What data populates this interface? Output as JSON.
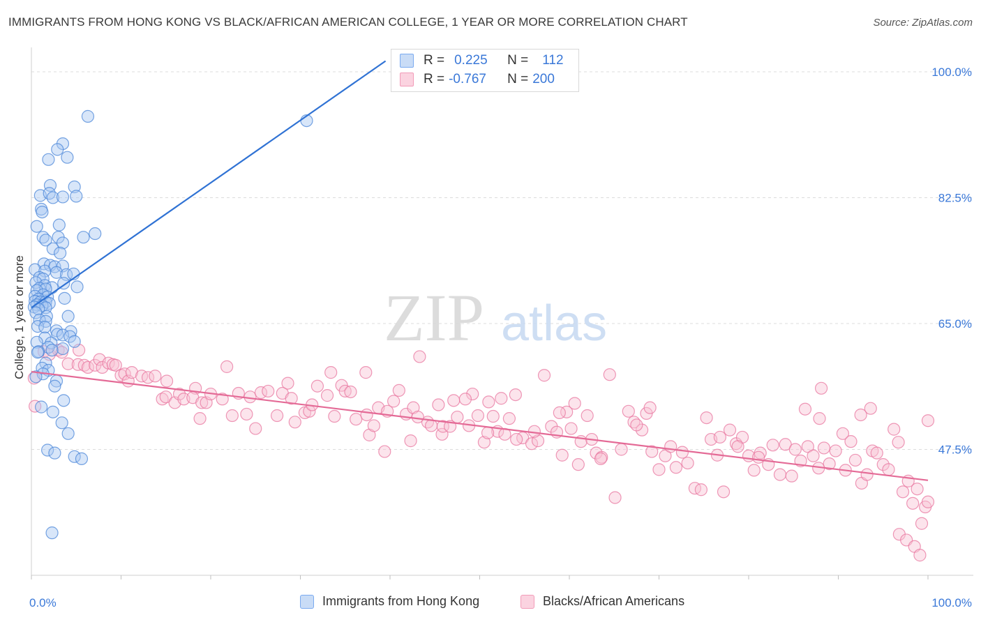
{
  "header": {
    "title": "IMMIGRANTS FROM HONG KONG VS BLACK/AFRICAN AMERICAN COLLEGE, 1 YEAR OR MORE CORRELATION CHART",
    "source": "Source: ZipAtlas.com"
  },
  "stats_legend": {
    "rows": [
      {
        "r_label": "R =",
        "r_value": "0.225",
        "n_label": "N =",
        "n_value": "112",
        "color": "#7aaaf0"
      },
      {
        "r_label": "R =",
        "r_value": "-0.767",
        "n_label": "N =",
        "n_value": "200",
        "color": "#f29bb8"
      }
    ]
  },
  "watermark": {
    "zip": "ZIP",
    "atlas": "atlas"
  },
  "colors": {
    "blue": "#4a86d8",
    "blue_fill": "#a9c8f2",
    "pink": "#e8769f",
    "pink_fill": "#f8c4d5",
    "tick_label": "#3a78d8"
  },
  "chart_data": {
    "type": "scatter",
    "title": "IMMIGRANTS FROM HONG KONG VS BLACK/AFRICAN AMERICAN COLLEGE, 1 YEAR OR MORE CORRELATION CHART",
    "xlabel": "",
    "ylabel": "College, 1 year or more",
    "xlim": [
      0,
      100
    ],
    "ylim": [
      30,
      103
    ],
    "x_tick_labels": [
      "0.0%",
      "100.0%"
    ],
    "y_ticks": [
      47.5,
      65.0,
      82.5,
      100.0
    ],
    "y_tick_labels": [
      "47.5%",
      "65.0%",
      "82.5%",
      "100.0%"
    ],
    "grid": true,
    "legend_position": "bottom",
    "series": [
      {
        "name": "Immigrants from Hong Kong",
        "r": 0.225,
        "n": 112,
        "trend": [
          [
            0,
            67.2
          ],
          [
            39.5,
            101.5
          ]
        ],
        "points": [
          [
            6.3,
            93.8
          ],
          [
            30.7,
            93.2
          ],
          [
            3.5,
            90.0
          ],
          [
            2.9,
            89.2
          ],
          [
            1.9,
            87.8
          ],
          [
            4.0,
            88.1
          ],
          [
            2.1,
            84.2
          ],
          [
            4.8,
            84.0
          ],
          [
            1.0,
            82.8
          ],
          [
            2.0,
            83.1
          ],
          [
            2.4,
            82.5
          ],
          [
            3.5,
            82.6
          ],
          [
            5.0,
            82.7
          ],
          [
            1.1,
            80.9
          ],
          [
            1.2,
            80.5
          ],
          [
            3.1,
            78.7
          ],
          [
            0.6,
            78.5
          ],
          [
            7.1,
            77.5
          ],
          [
            1.3,
            77.0
          ],
          [
            3.0,
            77.0
          ],
          [
            5.8,
            77.0
          ],
          [
            1.6,
            76.6
          ],
          [
            3.5,
            76.2
          ],
          [
            2.4,
            75.4
          ],
          [
            3.2,
            74.8
          ],
          [
            1.4,
            73.3
          ],
          [
            2.1,
            73.1
          ],
          [
            2.6,
            72.9
          ],
          [
            3.5,
            73.0
          ],
          [
            0.4,
            72.5
          ],
          [
            1.5,
            72.3
          ],
          [
            2.8,
            72.1
          ],
          [
            3.9,
            71.8
          ],
          [
            4.7,
            71.9
          ],
          [
            0.9,
            71.4
          ],
          [
            1.3,
            71.2
          ],
          [
            0.5,
            70.7
          ],
          [
            3.6,
            70.6
          ],
          [
            1.5,
            70.3
          ],
          [
            2.3,
            70.0
          ],
          [
            5.1,
            70.1
          ],
          [
            0.9,
            69.9
          ],
          [
            1.6,
            69.8
          ],
          [
            0.6,
            69.6
          ],
          [
            1.3,
            69.0
          ],
          [
            0.4,
            68.8
          ],
          [
            1.8,
            68.7
          ],
          [
            0.8,
            68.4
          ],
          [
            3.7,
            68.5
          ],
          [
            0.4,
            68.1
          ],
          [
            1.0,
            68.0
          ],
          [
            1.6,
            68.0
          ],
          [
            2.0,
            67.8
          ],
          [
            0.6,
            67.6
          ],
          [
            1.2,
            67.5
          ],
          [
            0.3,
            67.3
          ],
          [
            1.6,
            67.2
          ],
          [
            0.8,
            67.0
          ],
          [
            0.5,
            66.5
          ],
          [
            1.7,
            66.0
          ],
          [
            4.1,
            66.0
          ],
          [
            0.9,
            65.5
          ],
          [
            1.6,
            65.3
          ],
          [
            0.7,
            64.6
          ],
          [
            1.5,
            64.5
          ],
          [
            2.8,
            64.0
          ],
          [
            4.4,
            63.9
          ],
          [
            2.9,
            63.5
          ],
          [
            3.5,
            63.4
          ],
          [
            4.3,
            63.2
          ],
          [
            1.5,
            63.0
          ],
          [
            0.6,
            62.4
          ],
          [
            4.8,
            62.5
          ],
          [
            2.2,
            62.3
          ],
          [
            3.5,
            61.5
          ],
          [
            1.9,
            61.7
          ],
          [
            0.8,
            61.1
          ],
          [
            2.3,
            61.3
          ],
          [
            0.7,
            61.0
          ],
          [
            1.6,
            59.5
          ],
          [
            1.2,
            58.8
          ],
          [
            1.9,
            58.5
          ],
          [
            1.3,
            58.0
          ],
          [
            0.5,
            57.6
          ],
          [
            2.8,
            57.0
          ],
          [
            2.6,
            56.3
          ],
          [
            3.6,
            54.3
          ],
          [
            1.1,
            53.4
          ],
          [
            2.4,
            52.7
          ],
          [
            3.4,
            51.2
          ],
          [
            4.1,
            49.7
          ],
          [
            1.8,
            47.4
          ],
          [
            2.6,
            47.0
          ],
          [
            4.8,
            46.5
          ],
          [
            5.6,
            46.2
          ],
          [
            2.3,
            35.9
          ]
        ]
      },
      {
        "name": "Blacks/African Americans",
        "r": -0.767,
        "n": 200,
        "trend": [
          [
            0,
            58.3
          ],
          [
            100,
            43.2
          ]
        ],
        "points": [
          [
            0.3,
            57.4
          ],
          [
            0.4,
            53.5
          ],
          [
            1.4,
            61.1
          ],
          [
            2.0,
            60.7
          ],
          [
            3.0,
            61.3
          ],
          [
            3.4,
            61.0
          ],
          [
            4.1,
            59.4
          ],
          [
            5.2,
            59.3
          ],
          [
            5.3,
            61.3
          ],
          [
            5.9,
            59.2
          ],
          [
            6.3,
            58.9
          ],
          [
            7.1,
            59.2
          ],
          [
            7.6,
            60.0
          ],
          [
            7.9,
            58.9
          ],
          [
            8.6,
            59.5
          ],
          [
            9.1,
            59.3
          ],
          [
            9.4,
            59.2
          ],
          [
            10.0,
            57.8
          ],
          [
            10.4,
            58.0
          ],
          [
            10.8,
            57.0
          ],
          [
            11.2,
            58.2
          ],
          [
            12.3,
            57.7
          ],
          [
            13.0,
            57.5
          ],
          [
            13.8,
            57.7
          ],
          [
            14.6,
            54.5
          ],
          [
            15.0,
            54.8
          ],
          [
            15.1,
            57.0
          ],
          [
            16.0,
            54.0
          ],
          [
            16.5,
            55.2
          ],
          [
            17.0,
            54.5
          ],
          [
            18.3,
            56.0
          ],
          [
            18.0,
            54.7
          ],
          [
            18.8,
            51.8
          ],
          [
            19.0,
            54.0
          ],
          [
            19.5,
            54.0
          ],
          [
            20.0,
            55.2
          ],
          [
            21.3,
            54.5
          ],
          [
            21.8,
            59.0
          ],
          [
            22.4,
            52.2
          ],
          [
            23.1,
            55.3
          ],
          [
            24.0,
            52.4
          ],
          [
            24.4,
            54.8
          ],
          [
            25.0,
            50.4
          ],
          [
            25.6,
            55.4
          ],
          [
            26.4,
            55.6
          ],
          [
            27.4,
            52.2
          ],
          [
            28.0,
            55.3
          ],
          [
            28.6,
            56.7
          ],
          [
            29.0,
            54.6
          ],
          [
            29.4,
            51.3
          ],
          [
            30.5,
            52.6
          ],
          [
            31.0,
            52.8
          ],
          [
            31.3,
            53.7
          ],
          [
            31.9,
            56.3
          ],
          [
            33.0,
            55.0
          ],
          [
            33.4,
            58.2
          ],
          [
            33.8,
            52.1
          ],
          [
            34.6,
            56.4
          ],
          [
            35.0,
            55.6
          ],
          [
            35.6,
            55.5
          ],
          [
            36.2,
            51.7
          ],
          [
            37.3,
            58.2
          ],
          [
            37.4,
            52.3
          ],
          [
            37.7,
            49.5
          ],
          [
            38.2,
            50.8
          ],
          [
            38.7,
            53.3
          ],
          [
            39.4,
            47.2
          ],
          [
            39.7,
            52.8
          ],
          [
            40.4,
            54.2
          ],
          [
            41.0,
            55.7
          ],
          [
            41.8,
            52.4
          ],
          [
            42.6,
            53.3
          ],
          [
            43.3,
            60.4
          ],
          [
            44.2,
            51.3
          ],
          [
            45.4,
            53.7
          ],
          [
            45.8,
            49.6
          ],
          [
            45.9,
            50.7
          ],
          [
            47.1,
            54.3
          ],
          [
            47.5,
            52.0
          ],
          [
            48.8,
            50.8
          ],
          [
            49.2,
            55.2
          ],
          [
            49.8,
            52.2
          ],
          [
            50.5,
            48.5
          ],
          [
            51.0,
            54.1
          ],
          [
            51.5,
            52.1
          ],
          [
            52.0,
            50.0
          ],
          [
            52.4,
            54.6
          ],
          [
            53.3,
            51.8
          ],
          [
            54.0,
            55.1
          ],
          [
            54.8,
            49.1
          ],
          [
            55.8,
            48.3
          ],
          [
            56.5,
            48.7
          ],
          [
            57.2,
            57.8
          ],
          [
            58.0,
            50.7
          ],
          [
            58.6,
            49.9
          ],
          [
            59.2,
            46.7
          ],
          [
            59.7,
            52.7
          ],
          [
            60.2,
            50.4
          ],
          [
            61.0,
            45.4
          ],
          [
            61.3,
            48.6
          ],
          [
            62.0,
            52.2
          ],
          [
            62.5,
            48.9
          ],
          [
            63.0,
            47.0
          ],
          [
            63.6,
            46.4
          ],
          [
            64.5,
            57.9
          ],
          [
            65.1,
            40.8
          ],
          [
            65.8,
            47.5
          ],
          [
            66.6,
            52.8
          ],
          [
            67.2,
            51.3
          ],
          [
            68.1,
            50.2
          ],
          [
            68.6,
            52.5
          ],
          [
            69.2,
            47.2
          ],
          [
            70.0,
            44.7
          ],
          [
            70.7,
            46.6
          ],
          [
            71.3,
            47.9
          ],
          [
            71.9,
            45.0
          ],
          [
            72.6,
            47.1
          ],
          [
            73.2,
            45.6
          ],
          [
            74.0,
            42.1
          ],
          [
            74.7,
            41.9
          ],
          [
            75.3,
            51.9
          ],
          [
            75.8,
            48.9
          ],
          [
            76.5,
            46.7
          ],
          [
            77.2,
            41.6
          ],
          [
            77.9,
            50.2
          ],
          [
            78.6,
            48.3
          ],
          [
            79.3,
            49.2
          ],
          [
            80.0,
            46.6
          ],
          [
            80.6,
            44.6
          ],
          [
            81.3,
            47.0
          ],
          [
            82.2,
            45.4
          ],
          [
            82.7,
            48.1
          ],
          [
            83.5,
            44.0
          ],
          [
            84.1,
            48.2
          ],
          [
            84.8,
            43.8
          ],
          [
            85.2,
            47.5
          ],
          [
            85.8,
            45.9
          ],
          [
            86.6,
            47.9
          ],
          [
            87.2,
            46.6
          ],
          [
            87.8,
            44.9
          ],
          [
            88.4,
            47.7
          ],
          [
            89.0,
            45.5
          ],
          [
            89.7,
            47.3
          ],
          [
            90.5,
            49.7
          ],
          [
            90.8,
            44.6
          ],
          [
            91.4,
            48.6
          ],
          [
            91.9,
            46.0
          ],
          [
            92.6,
            42.8
          ],
          [
            93.2,
            44.0
          ],
          [
            93.8,
            47.3
          ],
          [
            94.3,
            47.0
          ],
          [
            95.0,
            45.4
          ],
          [
            95.6,
            44.7
          ],
          [
            96.2,
            50.3
          ],
          [
            96.7,
            48.5
          ],
          [
            97.2,
            41.6
          ],
          [
            97.8,
            43.1
          ],
          [
            98.3,
            40.0
          ],
          [
            98.8,
            42.0
          ],
          [
            99.3,
            37.2
          ],
          [
            99.7,
            39.5
          ],
          [
            96.8,
            35.7
          ],
          [
            97.6,
            34.9
          ],
          [
            98.5,
            34.0
          ],
          [
            99.1,
            32.8
          ],
          [
            100.0,
            40.2
          ],
          [
            100.0,
            51.5
          ],
          [
            93.6,
            53.2
          ],
          [
            92.5,
            52.3
          ],
          [
            88.1,
            56.0
          ],
          [
            87.9,
            51.8
          ],
          [
            86.3,
            53.1
          ],
          [
            81.1,
            46.4
          ],
          [
            78.8,
            47.9
          ],
          [
            76.8,
            49.2
          ],
          [
            69.0,
            53.3
          ],
          [
            67.5,
            50.9
          ],
          [
            63.5,
            46.2
          ],
          [
            60.6,
            53.9
          ],
          [
            58.9,
            52.6
          ],
          [
            56.1,
            50.0
          ],
          [
            54.1,
            48.9
          ],
          [
            52.8,
            49.6
          ],
          [
            50.9,
            49.8
          ],
          [
            48.4,
            54.5
          ],
          [
            46.7,
            50.7
          ],
          [
            44.6,
            50.8
          ],
          [
            43.1,
            52.0
          ],
          [
            42.3,
            48.7
          ]
        ]
      }
    ]
  },
  "bottom_legend": {
    "items": [
      {
        "label": "Immigrants from Hong Kong"
      },
      {
        "label": "Blacks/African Americans"
      }
    ]
  }
}
